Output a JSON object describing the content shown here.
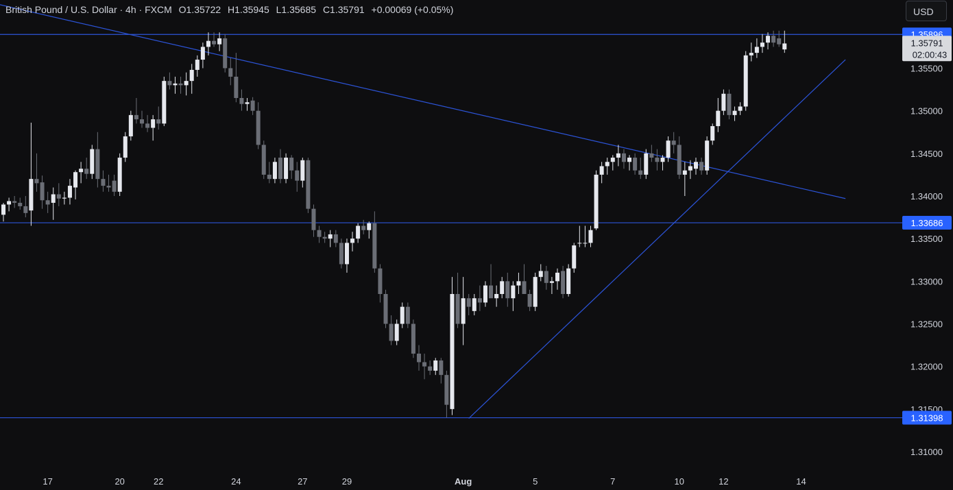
{
  "header": {
    "symbol": "British Pound / U.S. Dollar · 4h · FXCM",
    "open": "O1.35722",
    "high": "H1.35945",
    "low": "L1.35685",
    "close": "C1.35791",
    "change": "+0.00069 (+0.05%)"
  },
  "currency_button": "USD",
  "colors": {
    "background": "#0e0e10",
    "bull": "#e6e8ee",
    "bear": "#6b6e76",
    "line": "#2c54d9",
    "label_bg": "#2962ff",
    "current_bg": "#d8dade"
  },
  "chart_data": {
    "type": "candlestick",
    "title": "British Pound / U.S. Dollar · 4h · FXCM",
    "ylim": [
      1.3055,
      1.363
    ],
    "y_ticks": [
      "1.31000",
      "1.31500",
      "1.32000",
      "1.32500",
      "1.33000",
      "1.33500",
      "1.34000",
      "1.34500",
      "1.35000",
      "1.35500"
    ],
    "y_tick_values": [
      1.31,
      1.315,
      1.32,
      1.325,
      1.33,
      1.335,
      1.34,
      1.345,
      1.35,
      1.355
    ],
    "x_labels": [
      {
        "label": "17",
        "index": 8
      },
      {
        "label": "20",
        "index": 21
      },
      {
        "label": "22",
        "index": 28
      },
      {
        "label": "24",
        "index": 42
      },
      {
        "label": "27",
        "index": 54
      },
      {
        "label": "29",
        "index": 62
      },
      {
        "label": "Aug",
        "index": 83
      },
      {
        "label": "5",
        "index": 96
      },
      {
        "label": "7",
        "index": 110
      },
      {
        "label": "10",
        "index": 122
      },
      {
        "label": "12",
        "index": 130
      },
      {
        "label": "14",
        "index": 144
      }
    ],
    "horizontal_levels": [
      {
        "label": "1.35896",
        "value": 1.35896
      },
      {
        "label": "1.33686",
        "value": 1.33686
      },
      {
        "label": "1.31398",
        "value": 1.31398
      }
    ],
    "trendlines": [
      {
        "from": {
          "index": -1,
          "value": 1.3625
        },
        "to": {
          "index": 152,
          "value": 1.3397
        }
      },
      {
        "from": {
          "index": 84,
          "value": 1.3139
        },
        "to": {
          "index": 152,
          "value": 1.356
        }
      }
    ],
    "current_price": {
      "value": "1.35791",
      "countdown": "02:00:43",
      "level": 1.35791
    },
    "candles": [
      [
        1.3378,
        1.3392,
        1.337,
        1.339
      ],
      [
        1.339,
        1.3398,
        1.3382,
        1.3394
      ],
      [
        1.3394,
        1.34,
        1.3386,
        1.3392
      ],
      [
        1.3392,
        1.3398,
        1.3384,
        1.3388
      ],
      [
        1.3388,
        1.34,
        1.3375,
        1.338
      ],
      [
        1.3383,
        1.3486,
        1.3365,
        1.342
      ],
      [
        1.342,
        1.345,
        1.3405,
        1.3415
      ],
      [
        1.3416,
        1.3424,
        1.3385,
        1.3395
      ],
      [
        1.3395,
        1.3405,
        1.338,
        1.339
      ],
      [
        1.3392,
        1.341,
        1.3372,
        1.3402
      ],
      [
        1.3402,
        1.3415,
        1.3388,
        1.3397
      ],
      [
        1.3397,
        1.3405,
        1.339,
        1.3398
      ],
      [
        1.3398,
        1.342,
        1.339,
        1.3412
      ],
      [
        1.341,
        1.343,
        1.3396,
        1.3428
      ],
      [
        1.3428,
        1.344,
        1.3415,
        1.3432
      ],
      [
        1.3432,
        1.3445,
        1.342,
        1.3426
      ],
      [
        1.3426,
        1.346,
        1.342,
        1.3455
      ],
      [
        1.3455,
        1.3475,
        1.341,
        1.342
      ],
      [
        1.342,
        1.343,
        1.3405,
        1.3412
      ],
      [
        1.3412,
        1.3425,
        1.3405,
        1.341
      ],
      [
        1.3418,
        1.3425,
        1.34,
        1.3405
      ],
      [
        1.3405,
        1.345,
        1.34,
        1.3445
      ],
      [
        1.3445,
        1.3475,
        1.344,
        1.347
      ],
      [
        1.347,
        1.35,
        1.3465,
        1.3495
      ],
      [
        1.3495,
        1.3515,
        1.3485,
        1.349
      ],
      [
        1.349,
        1.35,
        1.348,
        1.3485
      ],
      [
        1.3485,
        1.3495,
        1.3475,
        1.348
      ],
      [
        1.348,
        1.3495,
        1.3465,
        1.349
      ],
      [
        1.349,
        1.3505,
        1.3478,
        1.3485
      ],
      [
        1.3485,
        1.354,
        1.3482,
        1.3535
      ],
      [
        1.3535,
        1.3545,
        1.3525,
        1.353
      ],
      [
        1.353,
        1.354,
        1.352,
        1.3532
      ],
      [
        1.3532,
        1.354,
        1.352,
        1.353
      ],
      [
        1.353,
        1.3545,
        1.3518,
        1.3535
      ],
      [
        1.3535,
        1.3555,
        1.352,
        1.3548
      ],
      [
        1.3548,
        1.3565,
        1.354,
        1.356
      ],
      [
        1.356,
        1.358,
        1.355,
        1.3575
      ],
      [
        1.3575,
        1.3592,
        1.3565,
        1.3582
      ],
      [
        1.3582,
        1.3592,
        1.3575,
        1.3578
      ],
      [
        1.3578,
        1.3592,
        1.357,
        1.3585
      ],
      [
        1.3585,
        1.359,
        1.3545,
        1.355
      ],
      [
        1.355,
        1.3562,
        1.353,
        1.354
      ],
      [
        1.354,
        1.3568,
        1.351,
        1.3515
      ],
      [
        1.3515,
        1.3525,
        1.35,
        1.3508
      ],
      [
        1.3508,
        1.3515,
        1.35,
        1.351
      ],
      [
        1.3512,
        1.3516,
        1.3495,
        1.35
      ],
      [
        1.35,
        1.351,
        1.3455,
        1.346
      ],
      [
        1.346,
        1.3465,
        1.342,
        1.3425
      ],
      [
        1.3425,
        1.344,
        1.3415,
        1.342
      ],
      [
        1.342,
        1.3445,
        1.3415,
        1.344
      ],
      [
        1.3445,
        1.3455,
        1.3415,
        1.342
      ],
      [
        1.342,
        1.345,
        1.3415,
        1.3445
      ],
      [
        1.3445,
        1.3448,
        1.342,
        1.343
      ],
      [
        1.343,
        1.344,
        1.3405,
        1.3418
      ],
      [
        1.3418,
        1.3445,
        1.341,
        1.3442
      ],
      [
        1.3442,
        1.3445,
        1.338,
        1.3385
      ],
      [
        1.3385,
        1.339,
        1.3352,
        1.336
      ],
      [
        1.336,
        1.3365,
        1.3345,
        1.3352
      ],
      [
        1.3352,
        1.3358,
        1.3345,
        1.335
      ],
      [
        1.335,
        1.336,
        1.334,
        1.3355
      ],
      [
        1.3355,
        1.336,
        1.334,
        1.3345
      ],
      [
        1.3345,
        1.335,
        1.3315,
        1.332
      ],
      [
        1.332,
        1.335,
        1.331,
        1.3345
      ],
      [
        1.3345,
        1.3358,
        1.3335,
        1.335
      ],
      [
        1.335,
        1.3368,
        1.3345,
        1.3365
      ],
      [
        1.3365,
        1.3372,
        1.3355,
        1.336
      ],
      [
        1.336,
        1.337,
        1.335,
        1.3368
      ],
      [
        1.3368,
        1.3382,
        1.331,
        1.3315
      ],
      [
        1.3315,
        1.332,
        1.3275,
        1.3285
      ],
      [
        1.3285,
        1.329,
        1.3245,
        1.325
      ],
      [
        1.325,
        1.326,
        1.3225,
        1.323
      ],
      [
        1.323,
        1.3255,
        1.3225,
        1.325
      ],
      [
        1.325,
        1.3275,
        1.3245,
        1.327
      ],
      [
        1.327,
        1.3275,
        1.3245,
        1.325
      ],
      [
        1.325,
        1.3255,
        1.321,
        1.3215
      ],
      [
        1.3215,
        1.3225,
        1.3195,
        1.3205
      ],
      [
        1.3205,
        1.3215,
        1.3185,
        1.32
      ],
      [
        1.32,
        1.3207,
        1.319,
        1.3195
      ],
      [
        1.3195,
        1.321,
        1.319,
        1.3207
      ],
      [
        1.3207,
        1.321,
        1.318,
        1.319
      ],
      [
        1.319,
        1.3195,
        1.314,
        1.3155
      ],
      [
        1.315,
        1.3305,
        1.3143,
        1.3285
      ],
      [
        1.3285,
        1.331,
        1.3245,
        1.325
      ],
      [
        1.325,
        1.3305,
        1.3225,
        1.328
      ],
      [
        1.328,
        1.3285,
        1.326,
        1.327
      ],
      [
        1.3265,
        1.3285,
        1.326,
        1.328
      ],
      [
        1.328,
        1.3295,
        1.3265,
        1.3275
      ],
      [
        1.3275,
        1.33,
        1.327,
        1.3295
      ],
      [
        1.3295,
        1.332,
        1.3285,
        1.328
      ],
      [
        1.328,
        1.3295,
        1.327,
        1.3285
      ],
      [
        1.3285,
        1.3305,
        1.328,
        1.33
      ],
      [
        1.33,
        1.331,
        1.327,
        1.328
      ],
      [
        1.328,
        1.33,
        1.3265,
        1.3295
      ],
      [
        1.3295,
        1.331,
        1.3285,
        1.33
      ],
      [
        1.33,
        1.332,
        1.329,
        1.3285
      ],
      [
        1.3285,
        1.329,
        1.3265,
        1.327
      ],
      [
        1.327,
        1.331,
        1.3265,
        1.3305
      ],
      [
        1.3305,
        1.332,
        1.33,
        1.3312
      ],
      [
        1.3312,
        1.3318,
        1.329,
        1.3298
      ],
      [
        1.3298,
        1.3305,
        1.3285,
        1.33
      ],
      [
        1.33,
        1.3315,
        1.329,
        1.331
      ],
      [
        1.3312,
        1.3318,
        1.328,
        1.3285
      ],
      [
        1.3285,
        1.332,
        1.3282,
        1.3315
      ],
      [
        1.3315,
        1.3345,
        1.331,
        1.3342
      ],
      [
        1.3345,
        1.3365,
        1.334,
        1.3345
      ],
      [
        1.3345,
        1.3365,
        1.334,
        1.3345
      ],
      [
        1.3345,
        1.3365,
        1.334,
        1.336
      ],
      [
        1.3362,
        1.343,
        1.336,
        1.3425
      ],
      [
        1.3425,
        1.344,
        1.3415,
        1.3435
      ],
      [
        1.3435,
        1.3445,
        1.3425,
        1.344
      ],
      [
        1.344,
        1.3448,
        1.343,
        1.3445
      ],
      [
        1.3445,
        1.346,
        1.3435,
        1.345
      ],
      [
        1.345,
        1.3455,
        1.3432,
        1.344
      ],
      [
        1.344,
        1.3448,
        1.343,
        1.3445
      ],
      [
        1.3445,
        1.345,
        1.3425,
        1.343
      ],
      [
        1.343,
        1.3445,
        1.342,
        1.3425
      ],
      [
        1.3425,
        1.3455,
        1.342,
        1.345
      ],
      [
        1.345,
        1.346,
        1.344,
        1.3445
      ],
      [
        1.3445,
        1.3455,
        1.343,
        1.344
      ],
      [
        1.344,
        1.3448,
        1.343,
        1.3445
      ],
      [
        1.3445,
        1.347,
        1.344,
        1.3465
      ],
      [
        1.3465,
        1.3475,
        1.345,
        1.346
      ],
      [
        1.346,
        1.347,
        1.342,
        1.3425
      ],
      [
        1.3425,
        1.344,
        1.34,
        1.343
      ],
      [
        1.343,
        1.3442,
        1.342,
        1.3435
      ],
      [
        1.3432,
        1.3445,
        1.3425,
        1.344
      ],
      [
        1.344,
        1.3445,
        1.3425,
        1.343
      ],
      [
        1.343,
        1.347,
        1.3425,
        1.3465
      ],
      [
        1.3465,
        1.3485,
        1.346,
        1.3482
      ],
      [
        1.3482,
        1.3515,
        1.3475,
        1.35
      ],
      [
        1.35,
        1.3525,
        1.3495,
        1.352
      ],
      [
        1.352,
        1.3525,
        1.349,
        1.3495
      ],
      [
        1.3495,
        1.3505,
        1.3488,
        1.35
      ],
      [
        1.35,
        1.351,
        1.3495,
        1.3505
      ],
      [
        1.3505,
        1.357,
        1.35,
        1.3565
      ],
      [
        1.3565,
        1.358,
        1.3558,
        1.3568
      ],
      [
        1.3568,
        1.3585,
        1.3562,
        1.3575
      ],
      [
        1.3575,
        1.359,
        1.3568,
        1.358
      ],
      [
        1.358,
        1.3592,
        1.3572,
        1.3588
      ],
      [
        1.3588,
        1.3594,
        1.3575,
        1.358
      ],
      [
        1.3585,
        1.3594,
        1.3575,
        1.3578
      ],
      [
        1.3572,
        1.3594,
        1.3568,
        1.3579
      ]
    ]
  }
}
